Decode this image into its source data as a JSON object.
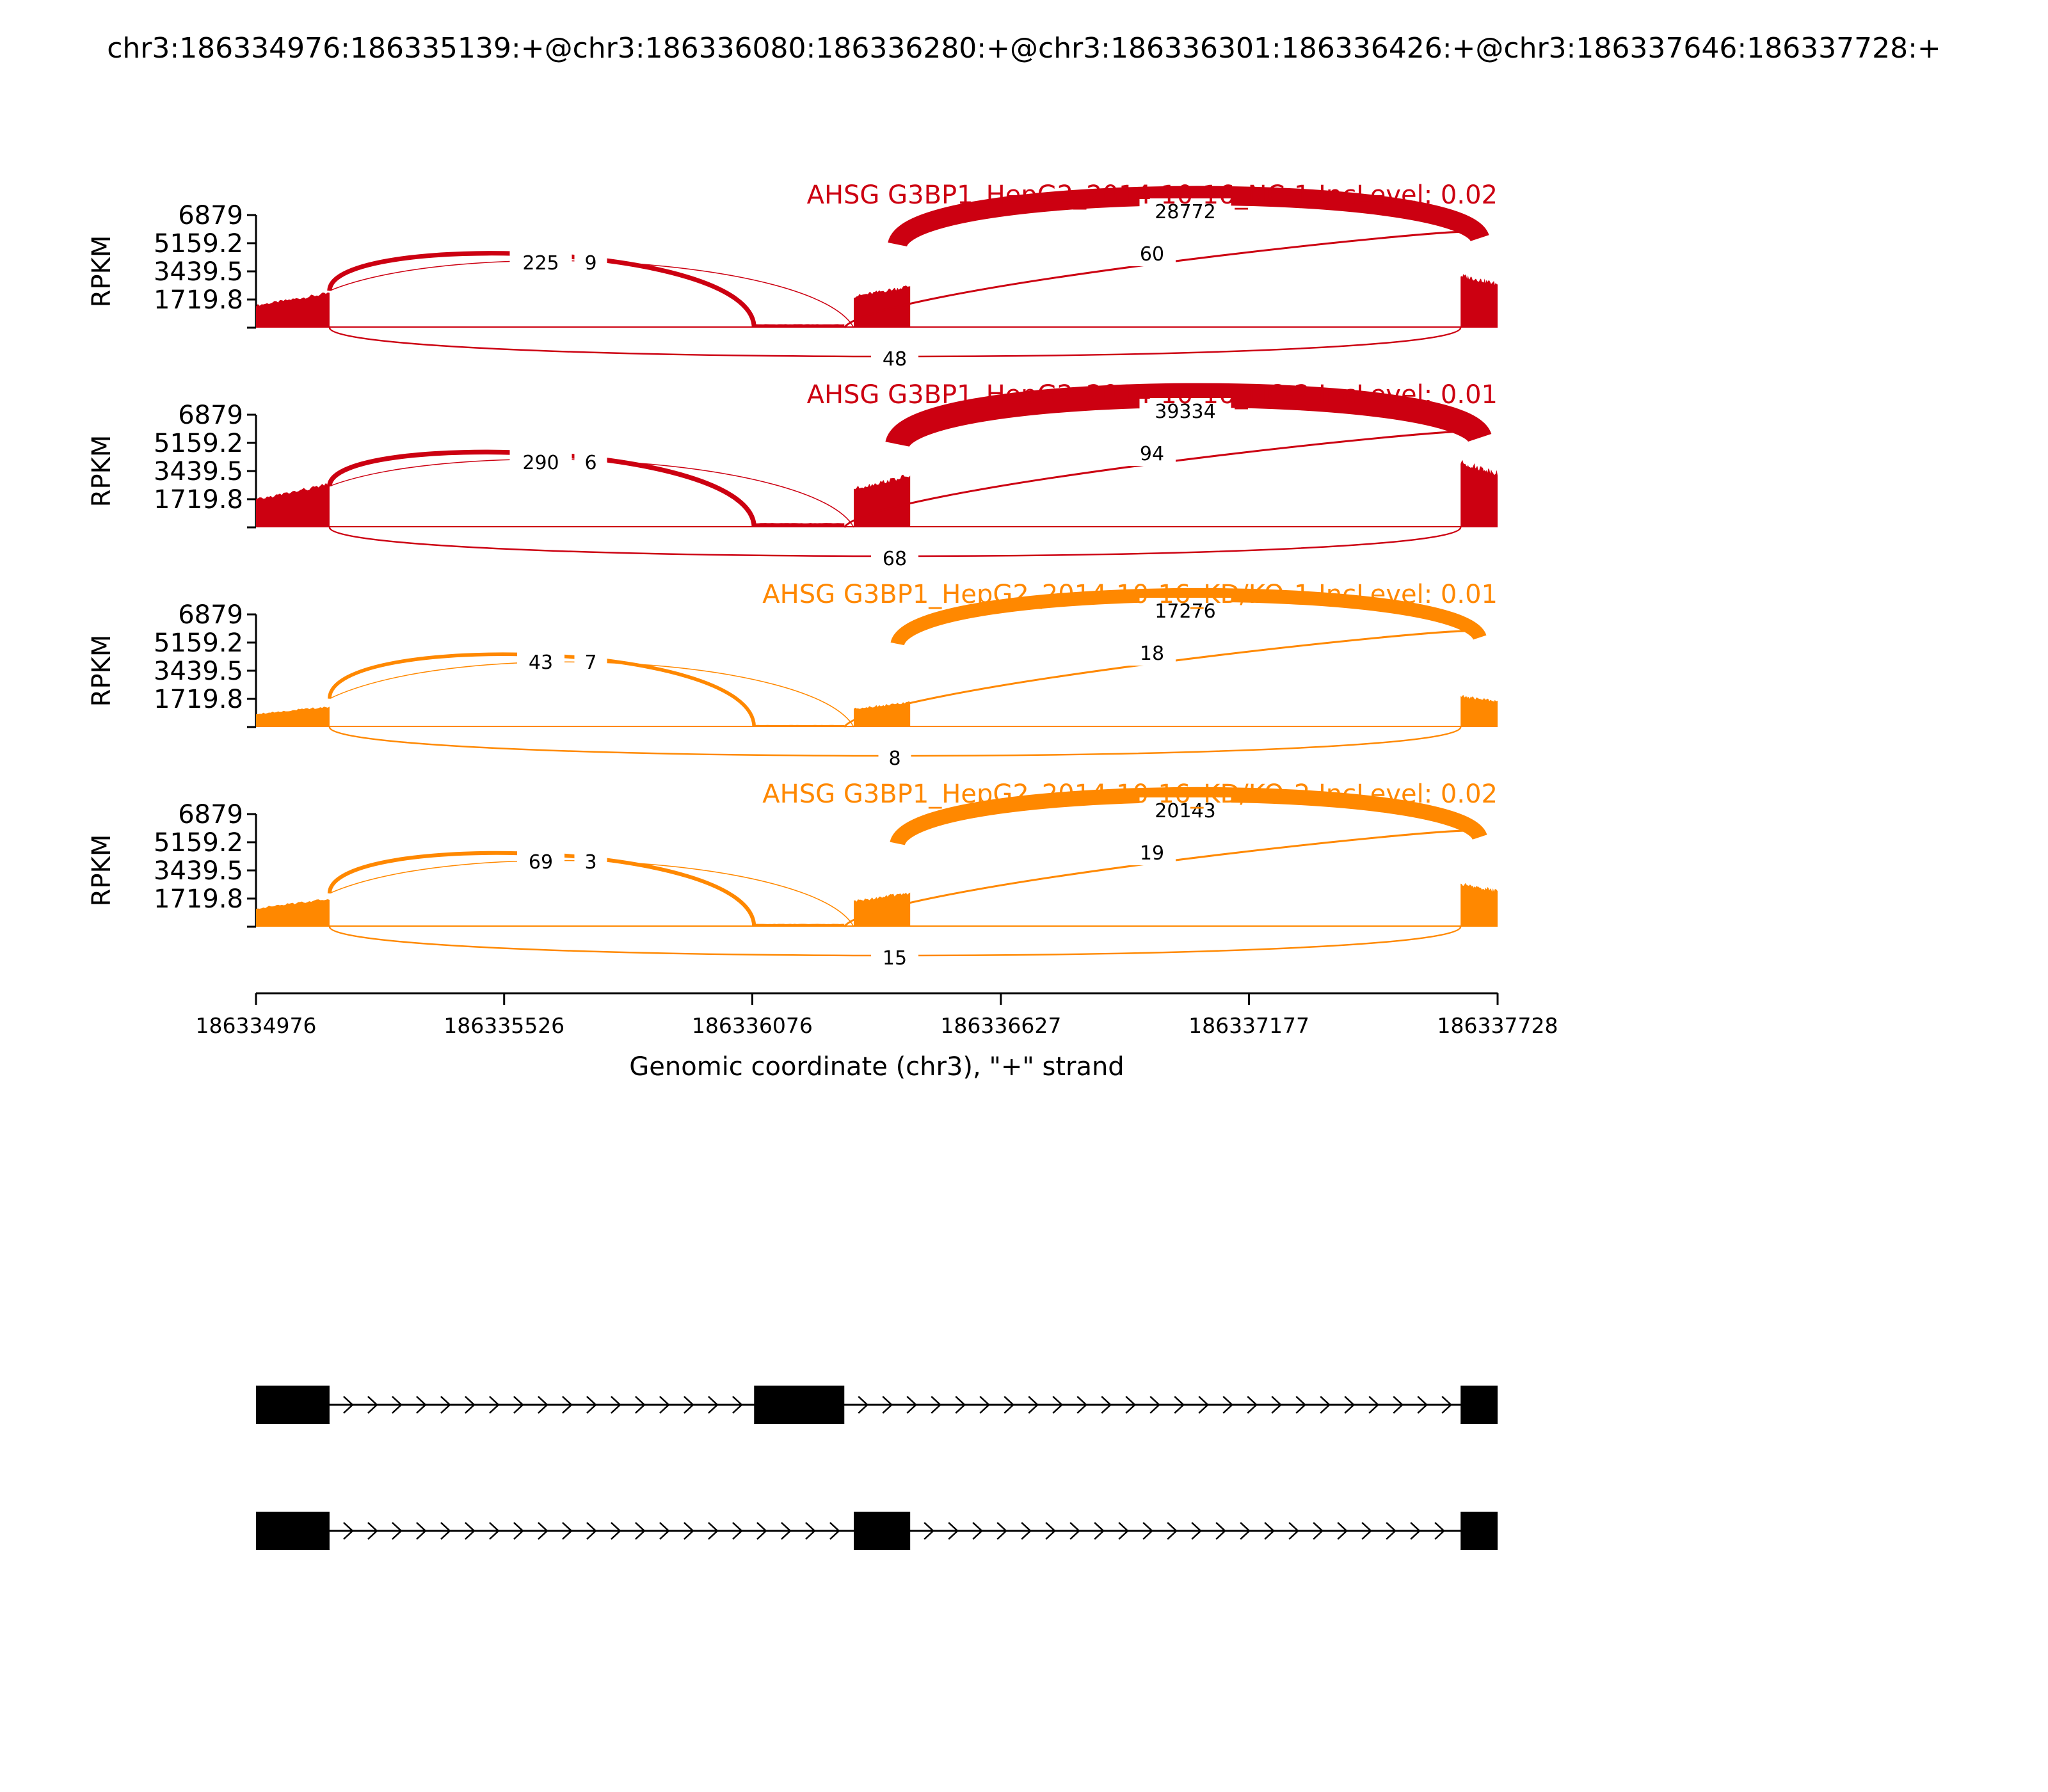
{
  "chart_data": {
    "type": "area",
    "title": "chr3:186334976:186335139:+@chr3:186336080:186336280:+@chr3:186336301:186336426:+@chr3:186337646:186337728:+",
    "xlabel": "Genomic coordinate (chr3), \"+\" strand",
    "ylabel": "RPKM",
    "ylim": [
      0,
      6879
    ],
    "xlim": [
      186334976,
      186337728
    ],
    "y_ticks": [
      "6879",
      "5159.2",
      "3439.5",
      "1719.8"
    ],
    "x_ticks": [
      186334976,
      186335526,
      186336076,
      186336627,
      186337177,
      186337728
    ],
    "x_tick_labels": [
      "186334976",
      "186335526",
      "186336076",
      "186336627",
      "186337177",
      "186337728"
    ],
    "exons": [
      {
        "start": 186334976,
        "end": 186335139
      },
      {
        "start": 186336080,
        "end": 186336280
      },
      {
        "start": 186336301,
        "end": 186336426
      },
      {
        "start": 186337646,
        "end": 186337728
      }
    ],
    "coverage_profile": {
      "exon1": [
        2650,
        4100
      ],
      "exon2": [
        400,
        400
      ],
      "exon3": [
        3700,
        4950
      ],
      "exon4": [
        6200,
        5200
      ]
    },
    "series": [
      {
        "title": "AHSG G3BP1_HepG2_2014-10-16_NC-1 IncLevel: 0.02",
        "color": "#cc0011",
        "coverage_scale": 0.52,
        "junctions": {
          "e1_e2": "225",
          "e1_e3": "9",
          "e3_e4": "28772",
          "e2_e4": "60",
          "e1_e4": "48"
        }
      },
      {
        "title": "AHSG G3BP1_HepG2_2014-10-16_NC-2 IncLevel: 0.01",
        "color": "#cc0011",
        "coverage_scale": 0.58,
        "junctions": {
          "e1_e2": "290",
          "e1_e3": "6",
          "e3_e4": "39334",
          "e2_e4": "94",
          "e1_e4": "68"
        }
      },
      {
        "title": "AHSG G3BP1_HepG2_2014-10-16_KD/KO-1 IncLevel: 0.01",
        "color": "#ff8800",
        "coverage_scale": 0.4,
        "junctions": {
          "e1_e2": "43",
          "e1_e3": "7",
          "e3_e4": "17276",
          "e2_e4": "18",
          "e1_e4": "8"
        }
      },
      {
        "title": "AHSG G3BP1_HepG2_2014-10-16_KD/KO-2 IncLevel: 0.02",
        "color": "#ff8800",
        "coverage_scale": 0.47,
        "junctions": {
          "e1_e2": "69",
          "e1_e3": "3",
          "e3_e4": "20143",
          "e2_e4": "19",
          "e1_e4": "15"
        }
      }
    ],
    "isoforms": [
      {
        "exons": [
          {
            "start": 186334976,
            "end": 186335139
          },
          {
            "start": 186336080,
            "end": 186336280
          },
          {
            "start": 186337646,
            "end": 186337728
          }
        ]
      },
      {
        "exons": [
          {
            "start": 186334976,
            "end": 186335139
          },
          {
            "start": 186336301,
            "end": 186336426
          },
          {
            "start": 186337646,
            "end": 186337728
          }
        ]
      }
    ]
  }
}
